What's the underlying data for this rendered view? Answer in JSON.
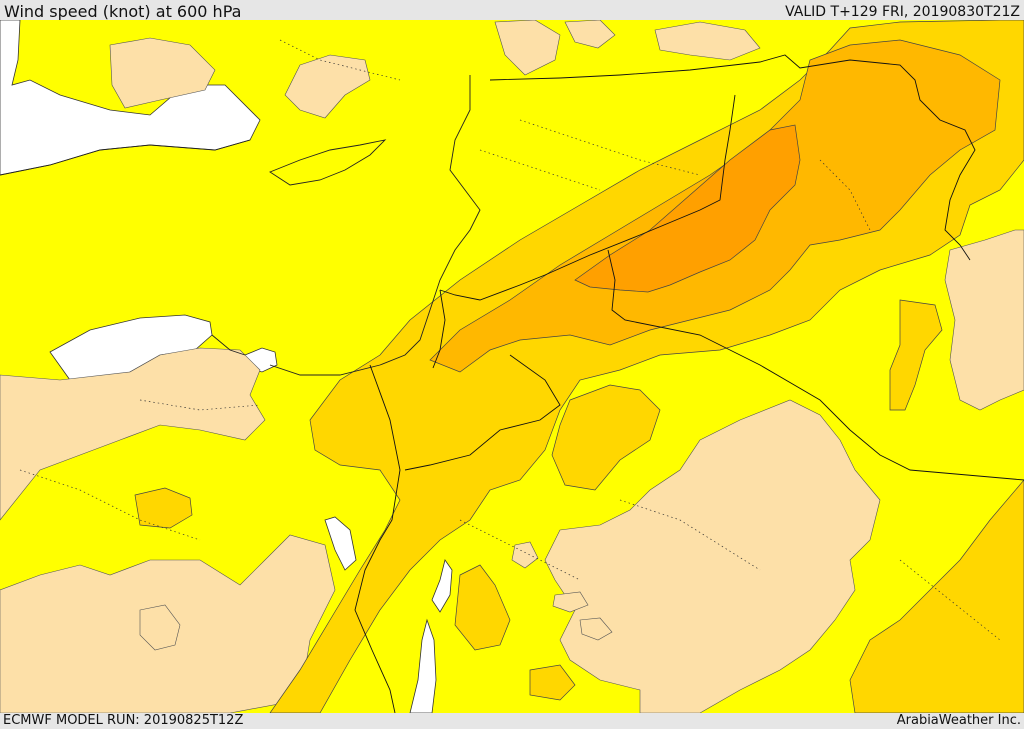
{
  "header": {
    "title": "Wind speed (knot) at 600 hPa",
    "valid": "VALID T+129 FRI, 20190830T21Z"
  },
  "footer": {
    "model_run": "ECMWF MODEL RUN: 20190825T12Z",
    "provider": "ArabiaWeather Inc."
  },
  "colors": {
    "sea": "#ffffff",
    "speed_lowest": "#fde0a8",
    "speed_low": "#ffff00",
    "speed_mid": "#ffd700",
    "speed_high": "#ffb800",
    "speed_highest": "#ffa000"
  }
}
